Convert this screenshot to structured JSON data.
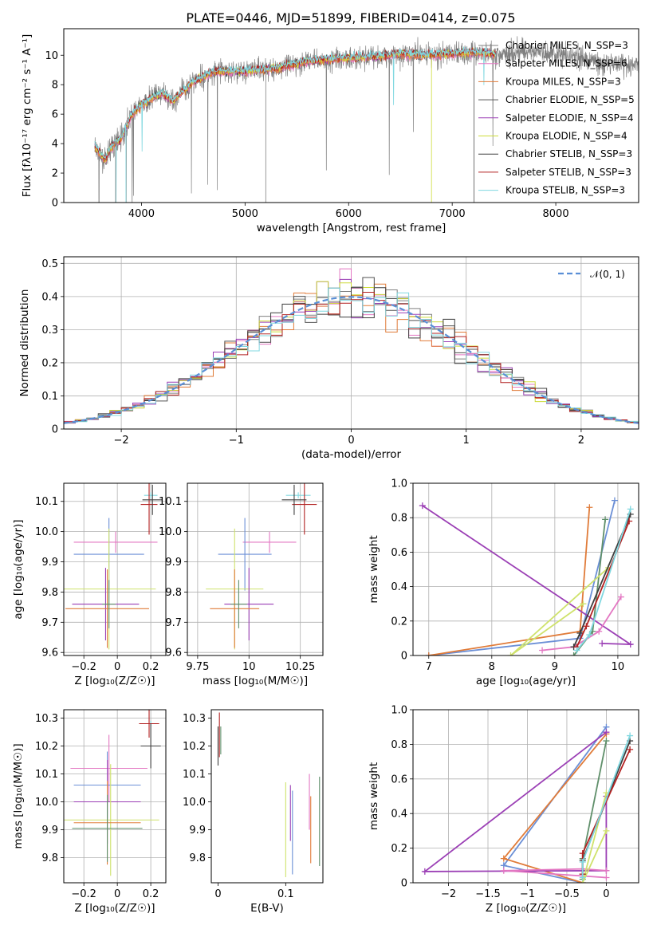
{
  "page": {
    "title": "PLATE=0446, MJD=51899, FIBERID=0414, z=0.075"
  },
  "colors": {
    "grid": "#b0b0b0",
    "gaussian": "#5a8fd6",
    "models": [
      "#808080",
      "#e377c2",
      "#e07b39",
      "#505050",
      "#9b3fb5",
      "#cddc39",
      "#3f3f3f",
      "#b22222",
      "#80d8e0"
    ],
    "weights": [
      "#6b8fd6",
      "#e07b39",
      "#5f8f6a",
      "#9b3fb5",
      "#e377c2",
      "#cfe26b",
      "#3f3f3f",
      "#b22222",
      "#80d8e0"
    ]
  },
  "chart_data": [
    {
      "id": "spectrum",
      "type": "line",
      "xlabel": "wavelength [Angstrom, rest frame]",
      "ylabel": "Flux [fλ10⁻¹⁷ erg cm⁻² s⁻¹ A⁻¹]",
      "xlim": [
        3250,
        8800
      ],
      "ylim": [
        0,
        11.8
      ],
      "xticks": [
        4000,
        5000,
        6000,
        7000,
        8000
      ],
      "yticks": [
        0,
        2,
        4,
        6,
        8,
        10
      ],
      "grid": false,
      "legend_position": "right",
      "series": [
        {
          "name": "Chabrier MILES, N_SSP=3"
        },
        {
          "name": "Salpeter MILES, N_SSP=6"
        },
        {
          "name": "Kroupa MILES, N_SSP=3"
        },
        {
          "name": "Chabrier ELODIE, N_SSP=5"
        },
        {
          "name": "Salpeter ELODIE, N_SSP=4"
        },
        {
          "name": "Kroupa ELODIE, N_SSP=4"
        },
        {
          "name": "Chabrier STELIB, N_SSP=3"
        },
        {
          "name": "Salpeter STELIB, N_SSP=3"
        },
        {
          "name": "Kroupa STELIB, N_SSP=3"
        }
      ],
      "data_profile": {
        "x": [
          3550,
          3650,
          3700,
          3800,
          3900,
          4000,
          4100,
          4200,
          4300,
          4500,
          4700,
          5000,
          5300,
          5600,
          6000,
          6300,
          6500,
          6700,
          7000,
          7200,
          7400,
          7600,
          8000,
          8400,
          8800
        ],
        "y": [
          3.8,
          2.8,
          3.7,
          4.3,
          5.9,
          6.6,
          7.1,
          7.4,
          6.9,
          8.2,
          8.9,
          8.9,
          9.1,
          9.6,
          9.8,
          9.9,
          10.1,
          10.0,
          10.1,
          10.2,
          10.1,
          10.2,
          10.2,
          9.5,
          9.2
        ]
      }
    },
    {
      "id": "residual-histogram",
      "type": "histogram",
      "xlabel": "(data-model)/error",
      "ylabel": "Normed distribution",
      "xlim": [
        -2.5,
        2.5
      ],
      "ylim": [
        0,
        0.52
      ],
      "xticks": [
        -2,
        -1,
        0,
        1,
        2
      ],
      "yticks": [
        0.0,
        0.1,
        0.2,
        0.3,
        0.4,
        0.5
      ],
      "grid": true,
      "legend_position": "top-right",
      "legend": "𝒩(0, 1)",
      "bin_width": 0.1,
      "bin_start": -2.5,
      "curve": {
        "type": "gaussian",
        "mean": 0,
        "sigma": 1
      }
    },
    {
      "id": "age-vs-Z",
      "type": "errorbar",
      "xlabel": "Z [log₁₀(Z/Z☉)]",
      "ylabel": "age  [log₁₀(age/yr)]",
      "xlim": [
        -0.32,
        0.29
      ],
      "ylim": [
        9.59,
        10.16
      ],
      "xticks": [
        -0.2,
        0.0,
        0.2
      ],
      "yticks": [
        9.6,
        9.7,
        9.8,
        9.9,
        10.0,
        10.1
      ],
      "grid": true,
      "points": [
        {
          "x": -0.01,
          "xerr": 0.25,
          "y": 9.965,
          "yerr": 0.035,
          "c": 4
        },
        {
          "x": -0.05,
          "xerr": 0.21,
          "y": 9.925,
          "yerr": 0.12,
          "c": 0
        },
        {
          "x": -0.05,
          "xerr": 0.28,
          "y": 9.81,
          "yerr": 0.2,
          "c": 5
        },
        {
          "x": -0.07,
          "xerr": 0.2,
          "y": 9.76,
          "yerr": 0.12,
          "c": 3
        },
        {
          "x": -0.06,
          "xerr": 0.25,
          "y": 9.745,
          "yerr": 0.13,
          "c": 1
        },
        {
          "x": -0.05,
          "xerr": 0.04,
          "y": 9.76,
          "yerr": 0.08,
          "c": 2
        },
        {
          "x": 0.2,
          "xerr": 0.04,
          "y": 10.12,
          "yerr": 0.01,
          "c": 8
        },
        {
          "x": 0.19,
          "xerr": 0.05,
          "y": 10.09,
          "yerr": 0.1,
          "c": 7
        },
        {
          "x": 0.21,
          "xerr": 0.06,
          "y": 10.105,
          "yerr": 0.05,
          "c": 6
        }
      ]
    },
    {
      "id": "age-vs-mass",
      "type": "errorbar",
      "xlabel": "mass [log₁₀(M/M☉)]",
      "ylabel": "",
      "xlim": [
        9.7,
        10.36
      ],
      "ylim": [
        9.59,
        10.16
      ],
      "xticks": [
        9.75,
        10.0,
        10.25
      ],
      "yticks": [
        9.6,
        9.7,
        9.8,
        9.9,
        10.0,
        10.1
      ],
      "grid": true,
      "points": [
        {
          "x": 10.1,
          "xerr": 0.13,
          "y": 9.965,
          "yerr": 0.035,
          "c": 4
        },
        {
          "x": 9.98,
          "xerr": 0.13,
          "y": 9.925,
          "yerr": 0.12,
          "c": 0
        },
        {
          "x": 9.93,
          "xerr": 0.14,
          "y": 9.81,
          "yerr": 0.2,
          "c": 5
        },
        {
          "x": 10.0,
          "xerr": 0.12,
          "y": 9.76,
          "yerr": 0.12,
          "c": 3
        },
        {
          "x": 9.93,
          "xerr": 0.12,
          "y": 9.745,
          "yerr": 0.13,
          "c": 1
        },
        {
          "x": 9.95,
          "xerr": 0.04,
          "y": 9.76,
          "yerr": 0.08,
          "c": 2
        },
        {
          "x": 10.24,
          "xerr": 0.06,
          "y": 10.12,
          "yerr": 0.01,
          "c": 8
        },
        {
          "x": 10.27,
          "xerr": 0.06,
          "y": 10.09,
          "yerr": 0.1,
          "c": 7
        },
        {
          "x": 10.22,
          "xerr": 0.06,
          "y": 10.105,
          "yerr": 0.05,
          "c": 6
        }
      ]
    },
    {
      "id": "weight-vs-age",
      "type": "line",
      "xlabel": "age  [log₁₀(age/yr)]",
      "ylabel": "mass weight",
      "xlim": [
        6.75,
        10.33
      ],
      "ylim": [
        0,
        1.0
      ],
      "xticks": [
        7,
        8,
        9,
        10
      ],
      "yticks": [
        0.0,
        0.2,
        0.4,
        0.6,
        0.8,
        1.0
      ],
      "grid": true,
      "series": [
        {
          "c": 0,
          "x": [
            9.95,
            9.4,
            7.0
          ],
          "y": [
            0.9,
            0.1,
            0.0
          ]
        },
        {
          "c": 1,
          "x": [
            9.55,
            9.4,
            7.0
          ],
          "y": [
            0.86,
            0.14,
            0.0
          ]
        },
        {
          "c": 2,
          "x": [
            9.8,
            9.6,
            9.3
          ],
          "y": [
            0.79,
            0.14,
            0.0
          ]
        },
        {
          "c": 3,
          "x": [
            9.75,
            10.2,
            6.9
          ],
          "y": [
            0.07,
            0.065,
            0.87
          ]
        },
        {
          "c": 4,
          "x": [
            10.05,
            9.7,
            9.3,
            8.8
          ],
          "y": [
            0.34,
            0.14,
            0.05,
            0.03
          ]
        },
        {
          "c": 5,
          "x": [
            9.85,
            8.3,
            9.45
          ],
          "y": [
            0.51,
            0.0,
            0.3
          ]
        },
        {
          "c": 6,
          "x": [
            10.2,
            9.4,
            9.3
          ],
          "y": [
            0.82,
            0.13,
            0.05
          ]
        },
        {
          "c": 7,
          "x": [
            10.18,
            9.5,
            9.35
          ],
          "y": [
            0.78,
            0.17,
            0.05
          ]
        },
        {
          "c": 8,
          "x": [
            10.2,
            9.55,
            9.35
          ],
          "y": [
            0.85,
            0.12,
            0.03
          ]
        }
      ]
    },
    {
      "id": "mass-vs-Z",
      "type": "errorbar",
      "xlabel": "Z [log₁₀(Z/Z☉)]",
      "ylabel": "mass [log₁₀(M/M☉)]",
      "xlim": [
        -0.32,
        0.29
      ],
      "ylim": [
        9.71,
        10.33
      ],
      "xticks": [
        -0.2,
        0.0,
        0.2
      ],
      "yticks": [
        9.8,
        9.9,
        10.0,
        10.1,
        10.2,
        10.3
      ],
      "grid": true,
      "points": [
        {
          "x": -0.05,
          "xerr": 0.23,
          "y": 10.12,
          "yerr": 0.12,
          "c": 4
        },
        {
          "x": -0.06,
          "xerr": 0.2,
          "y": 10.06,
          "yerr": 0.12,
          "c": 0
        },
        {
          "x": -0.06,
          "xerr": 0.2,
          "y": 10.0,
          "yerr": 0.15,
          "c": 3
        },
        {
          "x": -0.04,
          "xerr": 0.29,
          "y": 9.935,
          "yerr": 0.2,
          "c": 5
        },
        {
          "x": -0.06,
          "xerr": 0.2,
          "y": 9.925,
          "yerr": 0.15,
          "c": 1
        },
        {
          "x": -0.06,
          "xerr": 0.21,
          "y": 9.905,
          "yerr": 0.12,
          "c": 2
        },
        {
          "x": 0.2,
          "xerr": 0.04,
          "y": 10.28,
          "yerr": 0.01,
          "c": 8
        },
        {
          "x": 0.19,
          "xerr": 0.06,
          "y": 10.28,
          "yerr": 0.05,
          "c": 7
        },
        {
          "x": 0.2,
          "xerr": 0.06,
          "y": 10.2,
          "yerr": 0.08,
          "c": 6
        }
      ]
    },
    {
      "id": "mass-vs-EBV",
      "type": "errorbar",
      "xlabel": "E(B-V)",
      "ylabel": "",
      "xlim": [
        -0.01,
        0.155
      ],
      "ylim": [
        9.71,
        10.33
      ],
      "xticks": [
        0.0,
        0.1
      ],
      "yticks": [
        9.8,
        9.9,
        10.0,
        10.1,
        10.2,
        10.3
      ],
      "grid": false,
      "points": [
        {
          "x": 0.0,
          "xerr": 0,
          "y": 10.2,
          "yerr": 0.07,
          "c": 6
        },
        {
          "x": 0.002,
          "xerr": 0,
          "y": 10.24,
          "yerr": 0.08,
          "c": 7
        },
        {
          "x": 0.004,
          "xerr": 0,
          "y": 10.22,
          "yerr": 0.05,
          "c": 2
        },
        {
          "x": 0.1,
          "xerr": 0,
          "y": 9.9,
          "yerr": 0.17,
          "c": 5
        },
        {
          "x": 0.107,
          "xerr": 0,
          "y": 9.96,
          "yerr": 0.1,
          "c": 3
        },
        {
          "x": 0.11,
          "xerr": 0,
          "y": 9.89,
          "yerr": 0.15,
          "c": 0
        },
        {
          "x": 0.135,
          "xerr": 0,
          "y": 10.0,
          "yerr": 0.1,
          "c": 4
        },
        {
          "x": 0.137,
          "xerr": 0,
          "y": 9.9,
          "yerr": 0.12,
          "c": 1
        },
        {
          "x": 0.15,
          "xerr": 0,
          "y": 9.93,
          "yerr": 0.16,
          "c": 2
        }
      ]
    },
    {
      "id": "weight-vs-Z",
      "type": "line",
      "xlabel": "Z [log₁₀(Z/Z☉)]",
      "ylabel": "mass weight",
      "xlim": [
        -2.45,
        0.41
      ],
      "ylim": [
        0,
        1.0
      ],
      "xticks": [
        -2.0,
        -1.5,
        -1.0,
        -0.5,
        0.0
      ],
      "yticks": [
        0.0,
        0.2,
        0.4,
        0.6,
        0.8,
        1.0
      ],
      "grid": true,
      "series": [
        {
          "c": 0,
          "x": [
            0.0,
            -1.3,
            -0.3
          ],
          "y": [
            0.9,
            0.1,
            0.0
          ]
        },
        {
          "c": 1,
          "x": [
            0.0,
            -1.3,
            -0.3
          ],
          "y": [
            0.86,
            0.14,
            0.0
          ]
        },
        {
          "c": 2,
          "x": [
            0.0,
            -0.3,
            -0.3
          ],
          "y": [
            0.82,
            0.14,
            0.02
          ]
        },
        {
          "c": 3,
          "x": [
            0.0,
            -2.3,
            0.0,
            0.0
          ],
          "y": [
            0.87,
            0.065,
            0.07,
            0.5
          ]
        },
        {
          "c": 4,
          "x": [
            0.0,
            -0.3,
            -1.3,
            0.0
          ],
          "y": [
            0.07,
            0.08,
            0.07,
            0.03
          ]
        },
        {
          "c": 5,
          "x": [
            0.0,
            -0.3,
            0.0
          ],
          "y": [
            0.52,
            0.0,
            0.3
          ]
        },
        {
          "c": 6,
          "x": [
            0.3,
            -0.3,
            -0.3
          ],
          "y": [
            0.82,
            0.13,
            0.05
          ]
        },
        {
          "c": 7,
          "x": [
            0.3,
            -0.3,
            -0.3
          ],
          "y": [
            0.77,
            0.17,
            0.05
          ]
        },
        {
          "c": 8,
          "x": [
            0.3,
            -0.3,
            -0.3
          ],
          "y": [
            0.85,
            0.12,
            0.03
          ]
        }
      ]
    }
  ]
}
